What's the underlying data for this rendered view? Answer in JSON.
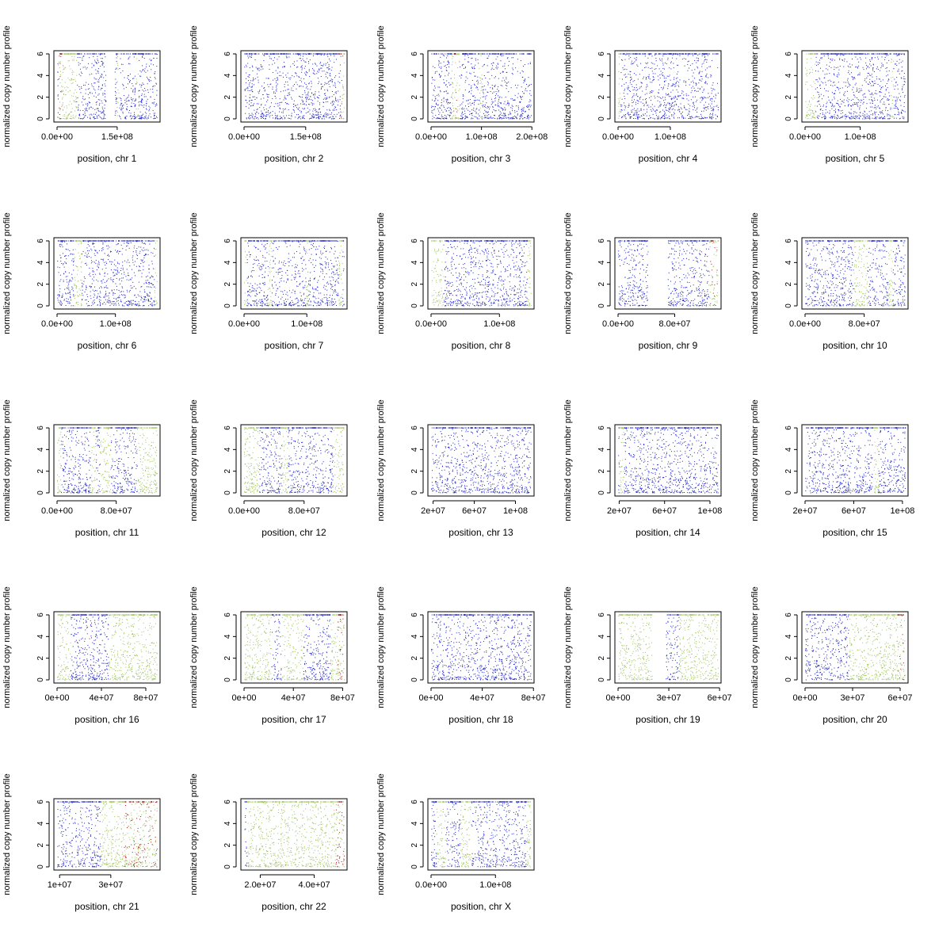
{
  "figure": {
    "y_axis_label": "normalized copy number profile",
    "y_ticks": [
      0,
      2,
      4,
      6
    ],
    "colors": {
      "normal": "#1c22c8",
      "gain": "#9cc25a",
      "high": "#a0101a",
      "frame": "#000000"
    }
  },
  "chart_data": [
    {
      "type": "scatter",
      "xlabel": "position, chr 1",
      "ylabel": "normalized copy number profile",
      "xlim": [
        0,
        249000000
      ],
      "ylim": [
        0,
        6
      ],
      "x_ticks": [
        {
          "v": 0,
          "label": "0.0e+00"
        },
        {
          "v": 150000000,
          "label": "1.5e+08"
        }
      ],
      "gaps": [
        [
          121000000,
          143000000
        ]
      ],
      "gain_regions": [
        [
          2000000,
          48000000
        ],
        [
          148000000,
          154000000
        ],
        [
          196000000,
          202000000
        ]
      ],
      "high_regions": [
        [
          3000000,
          12000000
        ]
      ]
    },
    {
      "type": "scatter",
      "xlabel": "position, chr 2",
      "ylabel": "normalized copy number profile",
      "xlim": [
        0,
        243000000
      ],
      "ylim": [
        0,
        6
      ],
      "x_ticks": [
        {
          "v": 0,
          "label": "0.0e+00"
        },
        {
          "v": 150000000,
          "label": "1.5e+08"
        }
      ],
      "gaps": [],
      "gain_regions": [
        [
          236000000,
          243000000
        ]
      ],
      "high_regions": [
        [
          230000000,
          240000000
        ]
      ]
    },
    {
      "type": "scatter",
      "xlabel": "position, chr 3",
      "ylabel": "normalized copy number profile",
      "xlim": [
        0,
        198000000
      ],
      "ylim": [
        0,
        6
      ],
      "x_ticks": [
        {
          "v": 0,
          "label": "0.0e+00"
        },
        {
          "v": 100000000,
          "label": "1.0e+08"
        },
        {
          "v": 200000000,
          "label": "2.0e+08"
        }
      ],
      "gaps": [],
      "gain_regions": [
        [
          40000000,
          56000000
        ],
        [
          95000000,
          100000000
        ]
      ],
      "high_regions": [
        [
          44000000,
          52000000
        ]
      ]
    },
    {
      "type": "scatter",
      "xlabel": "position, chr 4",
      "ylabel": "normalized copy number profile",
      "xlim": [
        0,
        191000000
      ],
      "ylim": [
        0,
        6
      ],
      "x_ticks": [
        {
          "v": 0,
          "label": "0.0e+00"
        },
        {
          "v": 100000000,
          "label": "1.0e+08"
        }
      ],
      "gaps": [],
      "gain_regions": [
        [
          0,
          4000000
        ]
      ],
      "high_regions": []
    },
    {
      "type": "scatter",
      "xlabel": "position, chr 5",
      "ylabel": "normalized copy number profile",
      "xlim": [
        0,
        181000000
      ],
      "ylim": [
        0,
        6
      ],
      "x_ticks": [
        {
          "v": 0,
          "label": "0.0e+00"
        },
        {
          "v": 100000000,
          "label": "1.0e+08"
        }
      ],
      "gaps": [],
      "gain_regions": [
        [
          0,
          18000000
        ],
        [
          155000000,
          160000000
        ]
      ],
      "high_regions": []
    },
    {
      "type": "scatter",
      "xlabel": "position, chr 6",
      "ylabel": "normalized copy number profile",
      "xlim": [
        0,
        171000000
      ],
      "ylim": [
        0,
        6
      ],
      "x_ticks": [
        {
          "v": 0,
          "label": "0.0e+00"
        },
        {
          "v": 100000000,
          "label": "1.0e+08"
        }
      ],
      "gaps": [],
      "gain_regions": [
        [
          28000000,
          42000000
        ],
        [
          166000000,
          171000000
        ]
      ],
      "high_regions": []
    },
    {
      "type": "scatter",
      "xlabel": "position, chr 7",
      "ylabel": "normalized copy number profile",
      "xlim": [
        0,
        159000000
      ],
      "ylim": [
        0,
        6
      ],
      "x_ticks": [
        {
          "v": 0,
          "label": "0.0e+00"
        },
        {
          "v": 100000000,
          "label": "1.0e+08"
        }
      ],
      "gaps": [],
      "gain_regions": [
        [
          0,
          4000000
        ],
        [
          38000000,
          44000000
        ],
        [
          98000000,
          102000000
        ],
        [
          150000000,
          156000000
        ]
      ],
      "high_regions": []
    },
    {
      "type": "scatter",
      "xlabel": "position, chr 8",
      "ylabel": "normalized copy number profile",
      "xlim": [
        0,
        146000000
      ],
      "ylim": [
        0,
        6
      ],
      "x_ticks": [
        {
          "v": 0,
          "label": "0.0e+00"
        },
        {
          "v": 100000000,
          "label": "1.0e+08"
        }
      ],
      "gaps": [],
      "gain_regions": [
        [
          0,
          18000000
        ],
        [
          140000000,
          146000000
        ]
      ],
      "high_regions": []
    },
    {
      "type": "scatter",
      "xlabel": "position, chr 9",
      "ylabel": "normalized copy number profile",
      "xlim": [
        0,
        141000000
      ],
      "ylim": [
        0,
        6
      ],
      "x_ticks": [
        {
          "v": 0,
          "label": "0.0e+00"
        },
        {
          "v": 80000000,
          "label": "8.0e+07"
        }
      ],
      "gaps": [
        [
          42000000,
          70000000
        ]
      ],
      "gain_regions": [
        [
          128000000,
          141000000
        ]
      ],
      "high_regions": [
        [
          130000000,
          140000000
        ]
      ]
    },
    {
      "type": "scatter",
      "xlabel": "position, chr 10",
      "ylabel": "normalized copy number profile",
      "xlim": [
        0,
        135000000
      ],
      "ylim": [
        0,
        6
      ],
      "x_ticks": [
        {
          "v": 0,
          "label": "0.0e+00"
        },
        {
          "v": 80000000,
          "label": "8.0e+07"
        }
      ],
      "gaps": [],
      "gain_regions": [
        [
          65000000,
          84000000
        ],
        [
          112000000,
          118000000
        ]
      ],
      "high_regions": []
    },
    {
      "type": "scatter",
      "xlabel": "position, chr 11",
      "ylabel": "normalized copy number profile",
      "xlim": [
        0,
        135000000
      ],
      "ylim": [
        0,
        6
      ],
      "x_ticks": [
        {
          "v": 0,
          "label": "0.0e+00"
        },
        {
          "v": 80000000,
          "label": "8.0e+07"
        }
      ],
      "gaps": [],
      "gain_regions": [
        [
          0,
          5000000
        ],
        [
          45000000,
          52000000
        ],
        [
          58000000,
          72000000
        ],
        [
          108000000,
          135000000
        ]
      ],
      "high_regions": []
    },
    {
      "type": "scatter",
      "xlabel": "position, chr 12",
      "ylabel": "normalized copy number profile",
      "xlim": [
        0,
        133000000
      ],
      "ylim": [
        0,
        6
      ],
      "x_ticks": [
        {
          "v": 0,
          "label": "0.0e+00"
        },
        {
          "v": 80000000,
          "label": "8.0e+07"
        }
      ],
      "gaps": [],
      "gain_regions": [
        [
          0,
          20000000
        ],
        [
          50000000,
          58000000
        ],
        [
          118000000,
          133000000
        ]
      ],
      "high_regions": []
    },
    {
      "type": "scatter",
      "xlabel": "position, chr 13",
      "ylabel": "normalized copy number profile",
      "xlim": [
        18000000,
        115000000
      ],
      "ylim": [
        0,
        6
      ],
      "x_ticks": [
        {
          "v": 20000000,
          "label": "2e+07"
        },
        {
          "v": 60000000,
          "label": "6e+07"
        },
        {
          "v": 100000000,
          "label": "1e+08"
        }
      ],
      "gaps": [],
      "gain_regions": [],
      "high_regions": []
    },
    {
      "type": "scatter",
      "xlabel": "position, chr 14",
      "ylabel": "normalized copy number profile",
      "xlim": [
        19000000,
        107000000
      ],
      "ylim": [
        0,
        6
      ],
      "x_ticks": [
        {
          "v": 20000000,
          "label": "2e+07"
        },
        {
          "v": 60000000,
          "label": "6e+07"
        },
        {
          "v": 100000000,
          "label": "1e+08"
        }
      ],
      "gaps": [],
      "gain_regions": [
        [
          20000000,
          24000000
        ]
      ],
      "high_regions": []
    },
    {
      "type": "scatter",
      "xlabel": "position, chr 15",
      "ylabel": "normalized copy number profile",
      "xlim": [
        20000000,
        102000000
      ],
      "ylim": [
        0,
        6
      ],
      "x_ticks": [
        {
          "v": 20000000,
          "label": "2e+07"
        },
        {
          "v": 60000000,
          "label": "6e+07"
        },
        {
          "v": 100000000,
          "label": "1e+08"
        }
      ],
      "gaps": [],
      "gain_regions": [
        [
          75000000,
          80000000
        ]
      ],
      "high_regions": []
    },
    {
      "type": "scatter",
      "xlabel": "position, chr 16",
      "ylabel": "normalized copy number profile",
      "xlim": [
        0,
        90000000
      ],
      "ylim": [
        0,
        6
      ],
      "x_ticks": [
        {
          "v": 0,
          "label": "0e+00"
        },
        {
          "v": 40000000,
          "label": "4e+07"
        },
        {
          "v": 80000000,
          "label": "8e+07"
        }
      ],
      "gaps": [],
      "gain_regions": [
        [
          0,
          12000000
        ],
        [
          46000000,
          90000000
        ]
      ],
      "high_regions": [
        [
          28000000,
          30000000
        ]
      ]
    },
    {
      "type": "scatter",
      "xlabel": "position, chr 17",
      "ylabel": "normalized copy number profile",
      "xlim": [
        0,
        81000000
      ],
      "ylim": [
        0,
        6
      ],
      "x_ticks": [
        {
          "v": 0,
          "label": "0e+00"
        },
        {
          "v": 40000000,
          "label": "4e+07"
        },
        {
          "v": 80000000,
          "label": "8e+07"
        }
      ],
      "gaps": [],
      "gain_regions": [
        [
          0,
          22000000
        ],
        [
          30000000,
          48000000
        ],
        [
          70000000,
          81000000
        ]
      ],
      "high_regions": [
        [
          76000000,
          80000000
        ]
      ]
    },
    {
      "type": "scatter",
      "xlabel": "position, chr 18",
      "ylabel": "normalized copy number profile",
      "xlim": [
        0,
        78000000
      ],
      "ylim": [
        0,
        6
      ],
      "x_ticks": [
        {
          "v": 0,
          "label": "0e+00"
        },
        {
          "v": 40000000,
          "label": "4e+07"
        },
        {
          "v": 80000000,
          "label": "8e+07"
        }
      ],
      "gaps": [],
      "gain_regions": [],
      "high_regions": []
    },
    {
      "type": "scatter",
      "xlabel": "position, chr 19",
      "ylabel": "normalized copy number profile",
      "xlim": [
        0,
        59000000
      ],
      "ylim": [
        0,
        6
      ],
      "x_ticks": [
        {
          "v": 0,
          "label": "0e+00"
        },
        {
          "v": 30000000,
          "label": "3e+07"
        },
        {
          "v": 60000000,
          "label": "6e+07"
        }
      ],
      "gaps": [
        [
          20000000,
          28000000
        ]
      ],
      "gain_regions": [
        [
          0,
          20000000
        ],
        [
          36000000,
          59000000
        ]
      ],
      "high_regions": []
    },
    {
      "type": "scatter",
      "xlabel": "position, chr 20",
      "ylabel": "normalized copy number profile",
      "xlim": [
        0,
        63000000
      ],
      "ylim": [
        0,
        6
      ],
      "x_ticks": [
        {
          "v": 0,
          "label": "0e+00"
        },
        {
          "v": 30000000,
          "label": "3e+07"
        },
        {
          "v": 60000000,
          "label": "6e+07"
        }
      ],
      "gaps": [],
      "gain_regions": [
        [
          28000000,
          63000000
        ]
      ],
      "high_regions": [
        [
          58000000,
          63000000
        ]
      ]
    },
    {
      "type": "scatter",
      "xlabel": "position, chr 21",
      "ylabel": "normalized copy number profile",
      "xlim": [
        9000000,
        48000000
      ],
      "ylim": [
        0,
        6
      ],
      "x_ticks": [
        {
          "v": 10000000,
          "label": "1e+07"
        },
        {
          "v": 30000000,
          "label": "3e+07"
        }
      ],
      "gaps": [],
      "gain_regions": [
        [
          26000000,
          48000000
        ]
      ],
      "high_regions": [
        [
          35000000,
          48000000
        ]
      ]
    },
    {
      "type": "scatter",
      "xlabel": "position, chr 22",
      "ylabel": "normalized copy number profile",
      "xlim": [
        14000000,
        51000000
      ],
      "ylim": [
        0,
        6
      ],
      "x_ticks": [
        {
          "v": 20000000,
          "label": "2.0e+07"
        },
        {
          "v": 40000000,
          "label": "4.0e+07"
        }
      ],
      "gaps": [],
      "gain_regions": [
        [
          15000000,
          51000000
        ]
      ],
      "high_regions": [
        [
          48000000,
          51000000
        ]
      ]
    },
    {
      "type": "scatter",
      "xlabel": "position, chr X",
      "ylabel": "normalized copy number profile",
      "xlim": [
        0,
        155000000
      ],
      "ylim": [
        0,
        6
      ],
      "x_ticks": [
        {
          "v": 0,
          "label": "0.0e+00"
        },
        {
          "v": 100000000,
          "label": "1.0e+08"
        }
      ],
      "gaps": [],
      "gain_regions": [
        [
          8000000,
          22000000
        ],
        [
          45000000,
          62000000
        ],
        [
          148000000,
          155000000
        ]
      ],
      "high_regions": []
    }
  ]
}
